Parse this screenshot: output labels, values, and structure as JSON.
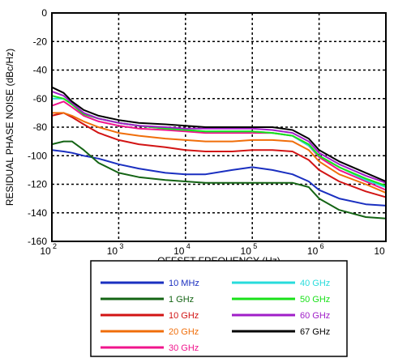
{
  "chart_data": {
    "type": "line",
    "xlabel": "OFFSET FREQUENCY  (Hz)",
    "ylabel": "RESIDUAL PHASE NOISE (dBc/Hz)",
    "xscale": "log",
    "xlim": [
      100,
      10000000
    ],
    "ylim": [
      -160,
      0
    ],
    "grid": true,
    "legend_position": "bottom",
    "x_tick_labels": [
      {
        "base": "10",
        "exp": "2"
      },
      {
        "base": "10",
        "exp": "3"
      },
      {
        "base": "10",
        "exp": "4"
      },
      {
        "base": "10",
        "exp": "5"
      },
      {
        "base": "10",
        "exp": "6"
      },
      {
        "base": "10",
        "exp": ""
      }
    ],
    "y_tick_labels": [
      "0",
      "-20",
      "-40",
      "-60",
      "-80",
      "-100",
      "-120",
      "-140",
      "-160"
    ],
    "x": [
      100,
      150,
      200,
      300,
      500,
      1000,
      2000,
      5000,
      10000,
      20000,
      50000,
      100000,
      200000,
      400000,
      700000,
      1000000,
      2000000,
      5000000,
      10000000
    ],
    "series": [
      {
        "name": "10 MHz",
        "color": "#1a2fc0",
        "values": [
          -96,
          -97,
          -98,
          -100,
          -102,
          -106,
          -109,
          -112,
          -113,
          -113,
          -110,
          -108,
          -110,
          -113,
          -118,
          -124,
          -130,
          -134,
          -135
        ]
      },
      {
        "name": "1 GHz",
        "color": "#146414",
        "values": [
          -92,
          -90,
          -90,
          -96,
          -105,
          -112,
          -115,
          -117,
          -118,
          -119,
          -119,
          -119,
          -119,
          -119,
          -122,
          -130,
          -138,
          -143,
          -144
        ]
      },
      {
        "name": "10 GHz",
        "color": "#d21414",
        "values": [
          -72,
          -70,
          -73,
          -78,
          -84,
          -89,
          -92,
          -94,
          -96,
          -97,
          -97,
          -96,
          -96,
          -97,
          -103,
          -110,
          -118,
          -125,
          -129
        ]
      },
      {
        "name": "20 GHz",
        "color": "#f06e0a",
        "values": [
          -70,
          -70,
          -72,
          -76,
          -80,
          -84,
          -86,
          -88,
          -89,
          -90,
          -90,
          -89,
          -89,
          -90,
          -96,
          -104,
          -113,
          -120,
          -126
        ]
      },
      {
        "name": "30 GHz",
        "color": "#f0148c",
        "values": [
          -65,
          -62,
          -66,
          -72,
          -76,
          -79,
          -81,
          -82,
          -83,
          -84,
          -84,
          -84,
          -84,
          -86,
          -93,
          -101,
          -110,
          -118,
          -124
        ]
      },
      {
        "name": "40 GHz",
        "color": "#28dcdc",
        "values": [
          -60,
          -60,
          -64,
          -70,
          -74,
          -77,
          -79,
          -81,
          -82,
          -83,
          -83,
          -83,
          -84,
          -86,
          -93,
          -100,
          -108,
          -117,
          -122
        ]
      },
      {
        "name": "50 GHz",
        "color": "#19e119",
        "values": [
          -58,
          -60,
          -64,
          -71,
          -74,
          -77,
          -79,
          -81,
          -82,
          -83,
          -83,
          -83,
          -84,
          -86,
          -92,
          -100,
          -108,
          -116,
          -121
        ]
      },
      {
        "name": "60 GHz",
        "color": "#a01ec8",
        "values": [
          -55,
          -58,
          -63,
          -70,
          -74,
          -77,
          -79,
          -80,
          -81,
          -81,
          -81,
          -81,
          -82,
          -84,
          -90,
          -98,
          -106,
          -114,
          -119
        ]
      },
      {
        "name": "67 GHz",
        "color": "#000000",
        "values": [
          -52,
          -56,
          -62,
          -68,
          -72,
          -75,
          -77,
          -78,
          -79,
          -80,
          -80,
          -80,
          -80,
          -82,
          -88,
          -96,
          -104,
          -112,
          -118
        ]
      }
    ]
  }
}
